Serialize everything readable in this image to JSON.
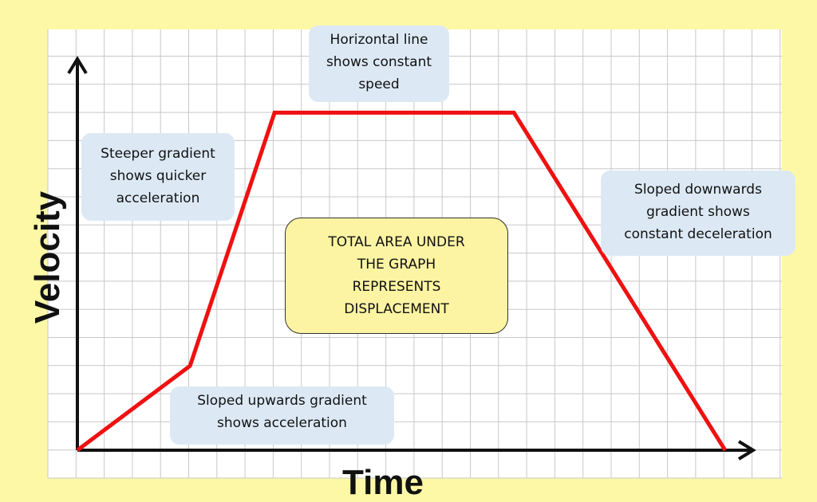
{
  "chart_data": {
    "type": "line",
    "title": "",
    "xlabel": "Time",
    "ylabel": "Velocity",
    "grid": true,
    "series": [
      {
        "points": [
          [
            0,
            0
          ],
          [
            4,
            3
          ],
          [
            7,
            12
          ],
          [
            15.5,
            12
          ],
          [
            23,
            0
          ]
        ],
        "color": "#ee1111"
      }
    ],
    "xlim": [
      0,
      24
    ],
    "ylim": [
      0,
      14
    ]
  },
  "annotations": {
    "constant_speed": "Horizontal line\nshows constant\nspeed",
    "steeper": "Steeper gradient\nshows quicker\nacceleration",
    "downwards": "Sloped downwards\ngradient shows\nconstant deceleration",
    "upwards": "Sloped upwards gradient\nshows acceleration",
    "area": "TOTAL AREA UNDER\nTHE GRAPH\nREPRESENTS\nDISPLACEMENT"
  },
  "colors": {
    "background": "#fdf8a6",
    "grid_background": "#ffffff",
    "grid_line": "#c8c8c8",
    "callout": "#dce9f5",
    "line": "#ee1111",
    "axes": "#111111"
  }
}
